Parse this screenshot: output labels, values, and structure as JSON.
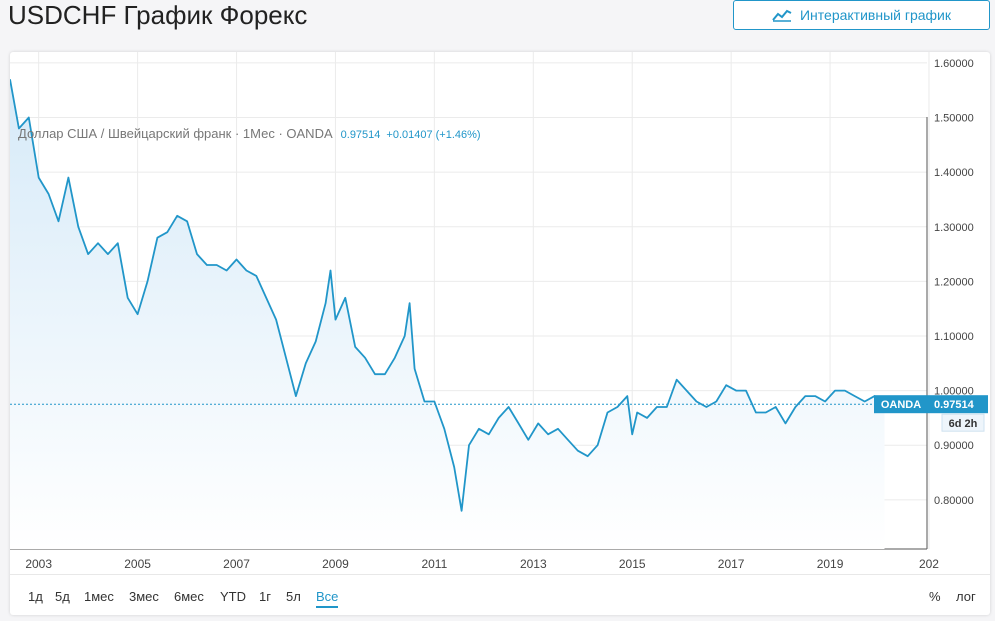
{
  "page": {
    "title": "USDCHF График Форекс",
    "interactive_button_label": "Интерактивный график",
    "interactive_icon": "chart-line-icon"
  },
  "chart_header": {
    "symbol_desc": "Доллар США / Швейцарский франк · 1Мес · OANDA",
    "last": "0.97514",
    "change": "+0.01407 (+1.46%)"
  },
  "price_tag": {
    "source": "OANDA",
    "value": "0.97514",
    "countdown": "6d 2h"
  },
  "colors": {
    "line": "#2196c9",
    "area_top": "#d6eaf8",
    "area_bottom": "#ffffff",
    "grid": "#ebebeb",
    "accent": "#2196c9"
  },
  "range_buttons": [
    {
      "label": "1д"
    },
    {
      "label": "5д"
    },
    {
      "label": "1мес"
    },
    {
      "label": "3мес"
    },
    {
      "label": "6мес"
    },
    {
      "label": "YTD"
    },
    {
      "label": "1г"
    },
    {
      "label": "5л"
    },
    {
      "label": "Все",
      "active": true
    }
  ],
  "right_buttons": [
    {
      "label": "%"
    },
    {
      "label": "лог"
    }
  ],
  "chart_data": {
    "type": "area",
    "title": "Доллар США / Швейцарский франк · 1Мес · OANDA",
    "x_tick_labels": [
      "2003",
      "2005",
      "2007",
      "2009",
      "2011",
      "2013",
      "2015",
      "2017",
      "2019",
      "202"
    ],
    "y_tick_labels": [
      "1.60000",
      "1.50000",
      "1.40000",
      "1.30000",
      "1.20000",
      "1.10000",
      "1.00000",
      "0.90000",
      "0.80000"
    ],
    "ylim": [
      0.71,
      1.62
    ],
    "xlim": [
      2002.42,
      2020.96
    ],
    "last_value": 0.97514,
    "grid": true,
    "series": [
      {
        "x": [
          2002.42,
          2002.6,
          2002.8,
          2003.0,
          2003.2,
          2003.4,
          2003.6,
          2003.8,
          2004.0,
          2004.2,
          2004.4,
          2004.6,
          2004.8,
          2005.0,
          2005.2,
          2005.4,
          2005.6,
          2005.8,
          2006.0,
          2006.2,
          2006.4,
          2006.6,
          2006.8,
          2007.0,
          2007.2,
          2007.4,
          2007.6,
          2007.8,
          2008.0,
          2008.2,
          2008.4,
          2008.6,
          2008.8,
          2008.9,
          2009.0,
          2009.2,
          2009.4,
          2009.6,
          2009.8,
          2010.0,
          2010.2,
          2010.4,
          2010.5,
          2010.6,
          2010.8,
          2011.0,
          2011.2,
          2011.4,
          2011.55,
          2011.7,
          2011.9,
          2012.1,
          2012.3,
          2012.5,
          2012.7,
          2012.9,
          2013.1,
          2013.3,
          2013.5,
          2013.7,
          2013.9,
          2014.1,
          2014.3,
          2014.5,
          2014.7,
          2014.9,
          2015.0,
          2015.1,
          2015.3,
          2015.5,
          2015.7,
          2015.9,
          2016.1,
          2016.3,
          2016.5,
          2016.7,
          2016.9,
          2017.1,
          2017.3,
          2017.5,
          2017.7,
          2017.9,
          2018.1,
          2018.3,
          2018.5,
          2018.7,
          2018.9,
          2019.1,
          2019.3,
          2019.5,
          2019.7,
          2019.9,
          2020.1
        ],
        "values": [
          1.57,
          1.48,
          1.5,
          1.39,
          1.36,
          1.31,
          1.39,
          1.3,
          1.25,
          1.27,
          1.25,
          1.27,
          1.17,
          1.14,
          1.2,
          1.28,
          1.29,
          1.32,
          1.31,
          1.25,
          1.23,
          1.23,
          1.22,
          1.24,
          1.22,
          1.21,
          1.17,
          1.13,
          1.06,
          0.99,
          1.05,
          1.09,
          1.16,
          1.22,
          1.13,
          1.17,
          1.08,
          1.06,
          1.03,
          1.03,
          1.06,
          1.1,
          1.16,
          1.04,
          0.98,
          0.98,
          0.93,
          0.86,
          0.78,
          0.9,
          0.93,
          0.92,
          0.95,
          0.97,
          0.94,
          0.91,
          0.94,
          0.92,
          0.93,
          0.91,
          0.89,
          0.88,
          0.9,
          0.96,
          0.97,
          0.99,
          0.92,
          0.96,
          0.95,
          0.97,
          0.97,
          1.02,
          1.0,
          0.98,
          0.97,
          0.98,
          1.01,
          1.0,
          1.0,
          0.96,
          0.96,
          0.97,
          0.94,
          0.97,
          0.99,
          0.99,
          0.98,
          1.0,
          1.0,
          0.99,
          0.98,
          0.99,
          0.97514
        ]
      }
    ]
  }
}
